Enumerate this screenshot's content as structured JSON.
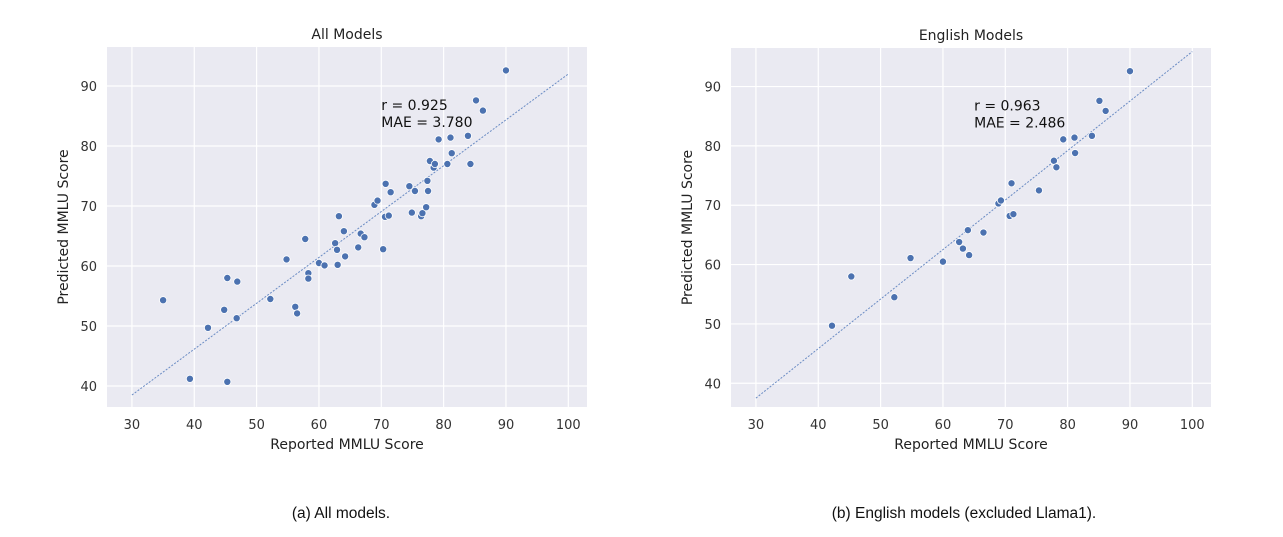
{
  "chart_data": [
    {
      "type": "scatter",
      "title": "All Models",
      "xlabel": "Reported MMLU Score",
      "ylabel": "Predicted MMLU Score",
      "xlim": [
        26,
        103
      ],
      "ylim": [
        36.5,
        96.5
      ],
      "xticks": [
        30,
        40,
        50,
        60,
        70,
        80,
        90,
        100
      ],
      "yticks": [
        40,
        50,
        60,
        70,
        80,
        90
      ],
      "grid": true,
      "point_color": "#4c72b0",
      "fit_line": {
        "x": [
          30,
          100
        ],
        "y": [
          38.5,
          92.0
        ],
        "color": "#6b8cc4"
      },
      "annotation": {
        "lines": [
          "r = 0.925",
          "MAE = 3.780"
        ],
        "x": 70,
        "y": 86
      },
      "points": [
        [
          35,
          54.3
        ],
        [
          39.3,
          41.2
        ],
        [
          42.2,
          49.7
        ],
        [
          44.8,
          52.7
        ],
        [
          45.3,
          58.0
        ],
        [
          45.3,
          40.7
        ],
        [
          46.8,
          51.3
        ],
        [
          46.9,
          57.4
        ],
        [
          52.2,
          54.5
        ],
        [
          54.8,
          61.1
        ],
        [
          56.2,
          53.2
        ],
        [
          56.5,
          52.1
        ],
        [
          57.8,
          64.5
        ],
        [
          58.3,
          58.8
        ],
        [
          58.3,
          57.9
        ],
        [
          60.0,
          60.5
        ],
        [
          60.9,
          60.1
        ],
        [
          62.6,
          63.8
        ],
        [
          62.9,
          62.7
        ],
        [
          63.0,
          60.2
        ],
        [
          63.2,
          68.3
        ],
        [
          64.0,
          65.8
        ],
        [
          64.2,
          61.6
        ],
        [
          66.3,
          63.1
        ],
        [
          66.7,
          65.4
        ],
        [
          67.3,
          64.8
        ],
        [
          68.9,
          70.2
        ],
        [
          69.4,
          70.9
        ],
        [
          70.3,
          62.8
        ],
        [
          70.6,
          68.2
        ],
        [
          70.7,
          73.7
        ],
        [
          71.2,
          68.4
        ],
        [
          71.5,
          72.3
        ],
        [
          74.5,
          73.3
        ],
        [
          74.9,
          68.9
        ],
        [
          75.4,
          72.5
        ],
        [
          76.4,
          68.3
        ],
        [
          76.6,
          68.8
        ],
        [
          77.2,
          69.8
        ],
        [
          77.4,
          74.2
        ],
        [
          77.5,
          72.5
        ],
        [
          77.8,
          77.5
        ],
        [
          78.4,
          76.4
        ],
        [
          78.6,
          77.0
        ],
        [
          79.2,
          81.1
        ],
        [
          80.6,
          77.0
        ],
        [
          81.1,
          81.4
        ],
        [
          81.3,
          78.8
        ],
        [
          83.9,
          81.7
        ],
        [
          84.3,
          77.0
        ],
        [
          85.2,
          87.6
        ],
        [
          86.3,
          85.9
        ],
        [
          90.0,
          92.6
        ]
      ]
    },
    {
      "type": "scatter",
      "title": "English Models",
      "xlabel": "Reported MMLU Score",
      "ylabel": "Predicted MMLU Score",
      "xlim": [
        26,
        103
      ],
      "ylim": [
        36,
        96.5
      ],
      "xticks": [
        30,
        40,
        50,
        60,
        70,
        80,
        90,
        100
      ],
      "yticks": [
        40,
        50,
        60,
        70,
        80,
        90
      ],
      "grid": true,
      "point_color": "#4c72b0",
      "fit_line": {
        "x": [
          30,
          100
        ],
        "y": [
          37.5,
          95.9
        ],
        "color": "#6b8cc4"
      },
      "annotation": {
        "lines": [
          "r = 0.963",
          "MAE = 2.486"
        ],
        "x": 65,
        "y": 86
      },
      "points": [
        [
          42.2,
          49.7
        ],
        [
          45.3,
          58.0
        ],
        [
          52.2,
          54.5
        ],
        [
          54.8,
          61.1
        ],
        [
          60.0,
          60.5
        ],
        [
          62.6,
          63.8
        ],
        [
          63.2,
          62.7
        ],
        [
          64.0,
          65.8
        ],
        [
          64.2,
          61.6
        ],
        [
          66.5,
          65.4
        ],
        [
          68.9,
          70.3
        ],
        [
          69.3,
          70.8
        ],
        [
          70.7,
          68.2
        ],
        [
          71.0,
          73.7
        ],
        [
          71.3,
          68.5
        ],
        [
          75.4,
          72.5
        ],
        [
          77.8,
          77.5
        ],
        [
          78.2,
          76.4
        ],
        [
          79.3,
          81.1
        ],
        [
          81.1,
          81.4
        ],
        [
          81.2,
          78.8
        ],
        [
          83.9,
          81.7
        ],
        [
          85.1,
          87.6
        ],
        [
          86.1,
          85.9
        ],
        [
          90.0,
          92.6
        ]
      ]
    }
  ],
  "captions": {
    "a": "(a)  All models.",
    "b": "(b)  English models (excluded Llama1)."
  }
}
